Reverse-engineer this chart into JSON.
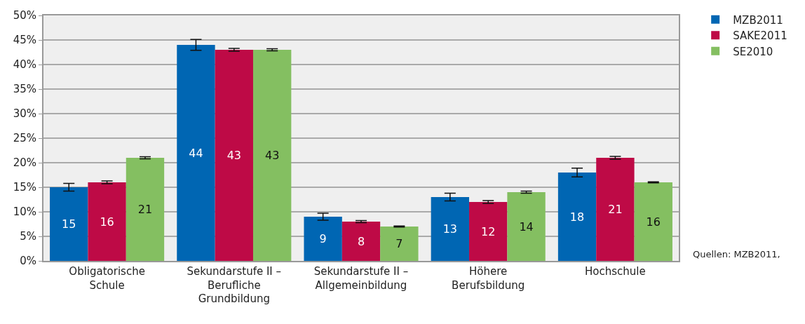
{
  "chart_data": {
    "type": "bar",
    "categories": [
      "Obligatorische\nSchule",
      "Sekundarstufe II –\nBerufliche\nGrundbildung",
      "Sekundarstufe II –\nAllgemeinbildung",
      "Höhere\nBerufsbildung",
      "Hochschule"
    ],
    "series": [
      {
        "name": "MZB2011",
        "color": "#0066b3",
        "values": [
          15,
          44,
          9,
          13,
          18
        ],
        "errors": [
          0.8,
          1.1,
          0.7,
          0.8,
          0.9
        ]
      },
      {
        "name": "SAKE2011",
        "color": "#be0a46",
        "values": [
          16,
          43,
          8,
          12,
          21
        ],
        "errors": [
          0.3,
          0.3,
          0.2,
          0.3,
          0.3
        ]
      },
      {
        "name": "SE2010",
        "color": "#84bf61",
        "values": [
          21,
          43,
          7,
          14,
          16
        ],
        "errors": [
          0.2,
          0.2,
          0.1,
          0.2,
          0.1
        ]
      }
    ],
    "ylim": [
      0,
      50
    ],
    "yticks": [
      {
        "value": 0,
        "label": "0%"
      },
      {
        "value": 5,
        "label": "5%"
      },
      {
        "value": 10,
        "label": "10%"
      },
      {
        "value": 15,
        "label": "15%"
      },
      {
        "value": 20,
        "label": "20%"
      },
      {
        "value": 25,
        "label": "25%"
      },
      {
        "value": 30,
        "label": "30%"
      },
      {
        "value": 35,
        "label": "35%"
      },
      {
        "value": 40,
        "label": "40%"
      },
      {
        "value": 45,
        "label": "45%"
      },
      {
        "value": 50,
        "label": "50%"
      }
    ],
    "grid": "y",
    "legend": "top right",
    "data_labels": true,
    "annotations": [
      "Quellen: MZB2011,"
    ]
  }
}
